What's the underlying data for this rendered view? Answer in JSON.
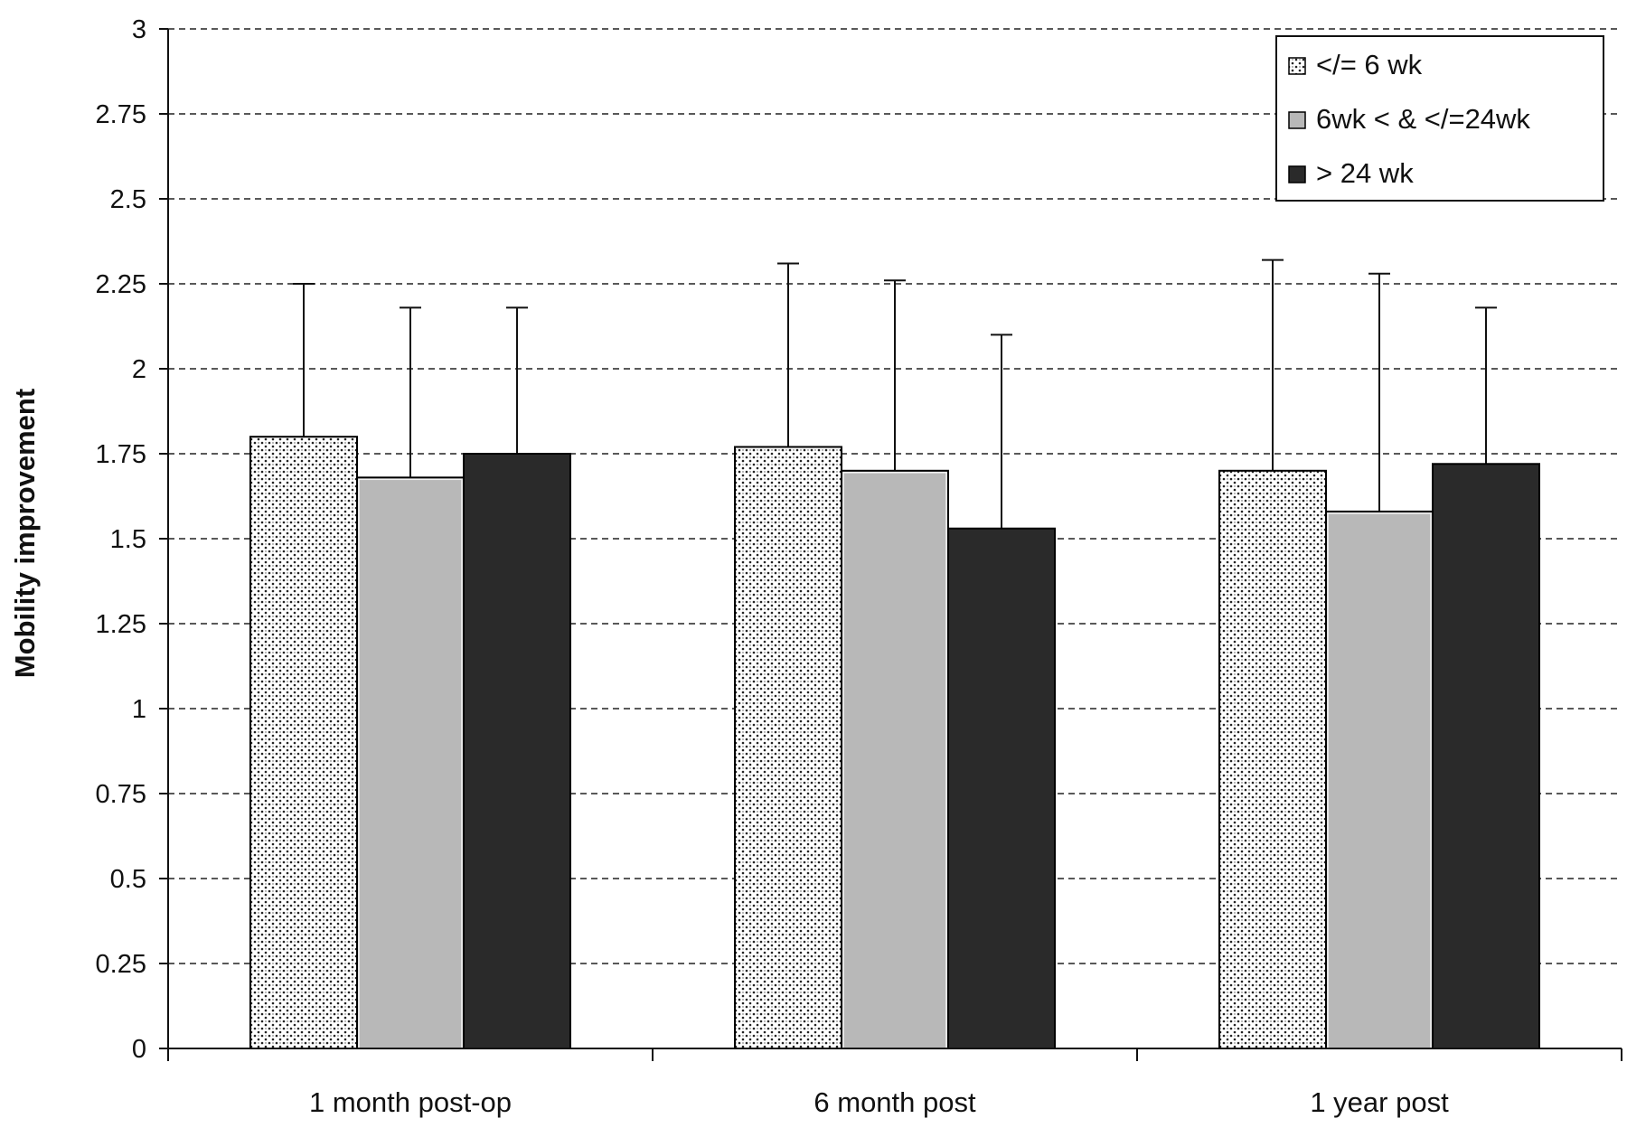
{
  "chart_data": {
    "type": "bar",
    "title": "",
    "xlabel": "",
    "ylabel": "Mobility improvement",
    "ylim": [
      0,
      3
    ],
    "yticks": [
      "0",
      "0.25",
      "0.5",
      "0.75",
      "1",
      "1.25",
      "1.5",
      "1.75",
      "2",
      "2.25",
      "2.5",
      "2.75",
      "3"
    ],
    "grid": true,
    "legend_position": "top-right",
    "categories": [
      "1 month post-op",
      "6 month post",
      "1 year post"
    ],
    "series": [
      {
        "name": "</= 6 wk",
        "values": [
          1.8,
          1.77,
          1.7
        ],
        "error_upper": [
          2.25,
          2.31,
          2.32
        ],
        "fill": "dotted",
        "color": "#ffffff"
      },
      {
        "name": "6wk < & </=24wk",
        "values": [
          1.68,
          1.7,
          1.58
        ],
        "error_upper": [
          2.18,
          2.26,
          2.28
        ],
        "fill": "solid",
        "color": "#b8b8b8"
      },
      {
        "name": "> 24 wk",
        "values": [
          1.75,
          1.53,
          1.72
        ],
        "error_upper": [
          2.18,
          2.1,
          2.18
        ],
        "fill": "solid",
        "color": "#2a2a2a"
      }
    ]
  }
}
